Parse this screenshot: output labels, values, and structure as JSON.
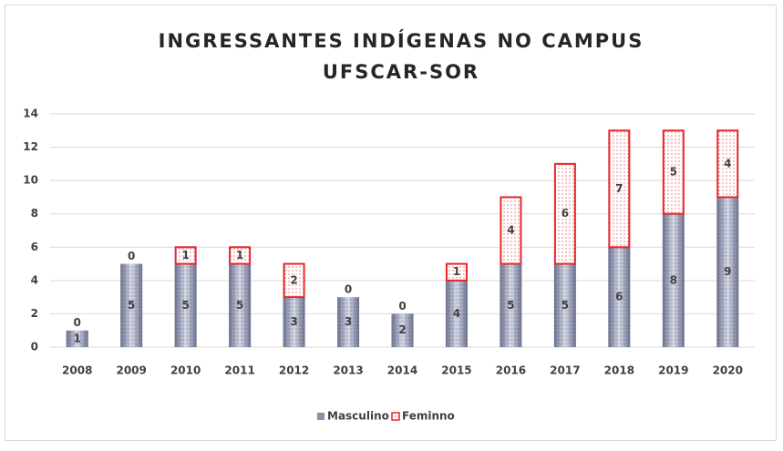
{
  "chart_data": {
    "type": "stacked_bar",
    "title": [
      "INGRESSANTES INDÍGENAS NO CAMPUS",
      "UFSCAR-SOR"
    ],
    "categories": [
      "2008",
      "2009",
      "2010",
      "2011",
      "2012",
      "2013",
      "2014",
      "2015",
      "2016",
      "2017",
      "2018",
      "2019",
      "2020"
    ],
    "series": [
      {
        "name": "Masculino",
        "color": "#8a8fa8",
        "values": [
          1,
          5,
          5,
          5,
          3,
          3,
          2,
          4,
          5,
          5,
          6,
          8,
          9
        ]
      },
      {
        "name": "Feminno",
        "color": "#e8262c",
        "values": [
          0,
          0,
          1,
          1,
          2,
          0,
          0,
          1,
          4,
          6,
          7,
          5,
          4
        ]
      }
    ],
    "ylim": [
      0,
      14
    ],
    "yticks": [
      0,
      2,
      4,
      6,
      8,
      10,
      12,
      14
    ],
    "grid": true,
    "legend": "bottom"
  }
}
